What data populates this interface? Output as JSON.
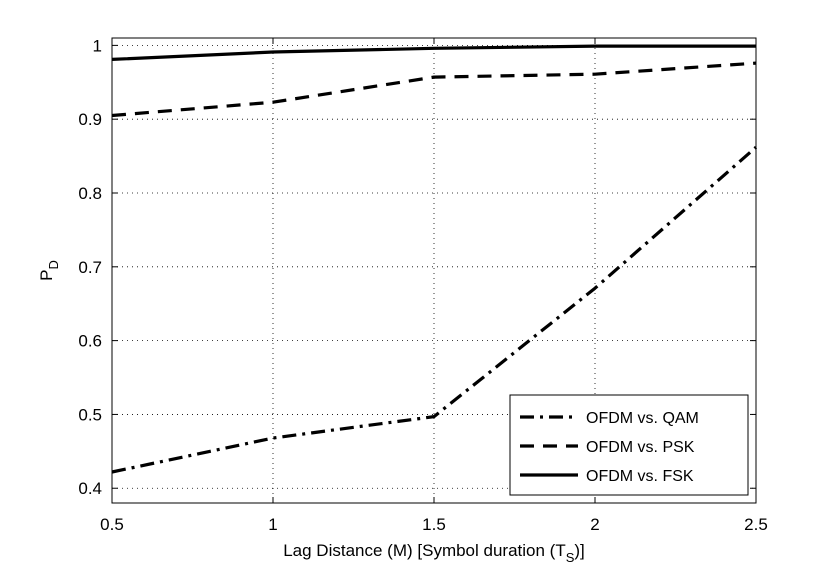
{
  "chart_data": {
    "type": "line",
    "title": "",
    "xlabel": "Lag Distance (M) [Symbol duration (T",
    "xlabel_sub": "S",
    "xlabel_tail": ")]",
    "ylabel": "P",
    "ylabel_sub": "D",
    "xlim": [
      0.5,
      2.5
    ],
    "ylim": [
      0.38,
      1.01
    ],
    "xticks": [
      0.5,
      1,
      1.5,
      2,
      2.5
    ],
    "xtick_labels": [
      "0.5",
      "1",
      "1.5",
      "2",
      "2.5"
    ],
    "yticks": [
      0.4,
      0.5,
      0.6,
      0.7,
      0.8,
      0.9,
      1.0
    ],
    "ytick_labels": [
      "0.4",
      "0.5",
      "0.6",
      "0.7",
      "0.8",
      "0.9",
      "1"
    ],
    "grid": true,
    "legend_position": "bottom-right",
    "x": [
      0.5,
      1,
      1.5,
      2,
      2.5
    ],
    "series": [
      {
        "name": "OFDM vs. QAM",
        "style": "dashdot",
        "color": "#000000",
        "values": [
          0.422,
          0.468,
          0.497,
          0.671,
          0.862
        ]
      },
      {
        "name": "OFDM vs. PSK",
        "style": "dashed",
        "color": "#000000",
        "values": [
          0.905,
          0.923,
          0.957,
          0.961,
          0.976
        ]
      },
      {
        "name": "OFDM vs. FSK",
        "style": "solid",
        "color": "#000000",
        "values": [
          0.981,
          0.991,
          0.996,
          0.999,
          0.999
        ]
      }
    ]
  }
}
